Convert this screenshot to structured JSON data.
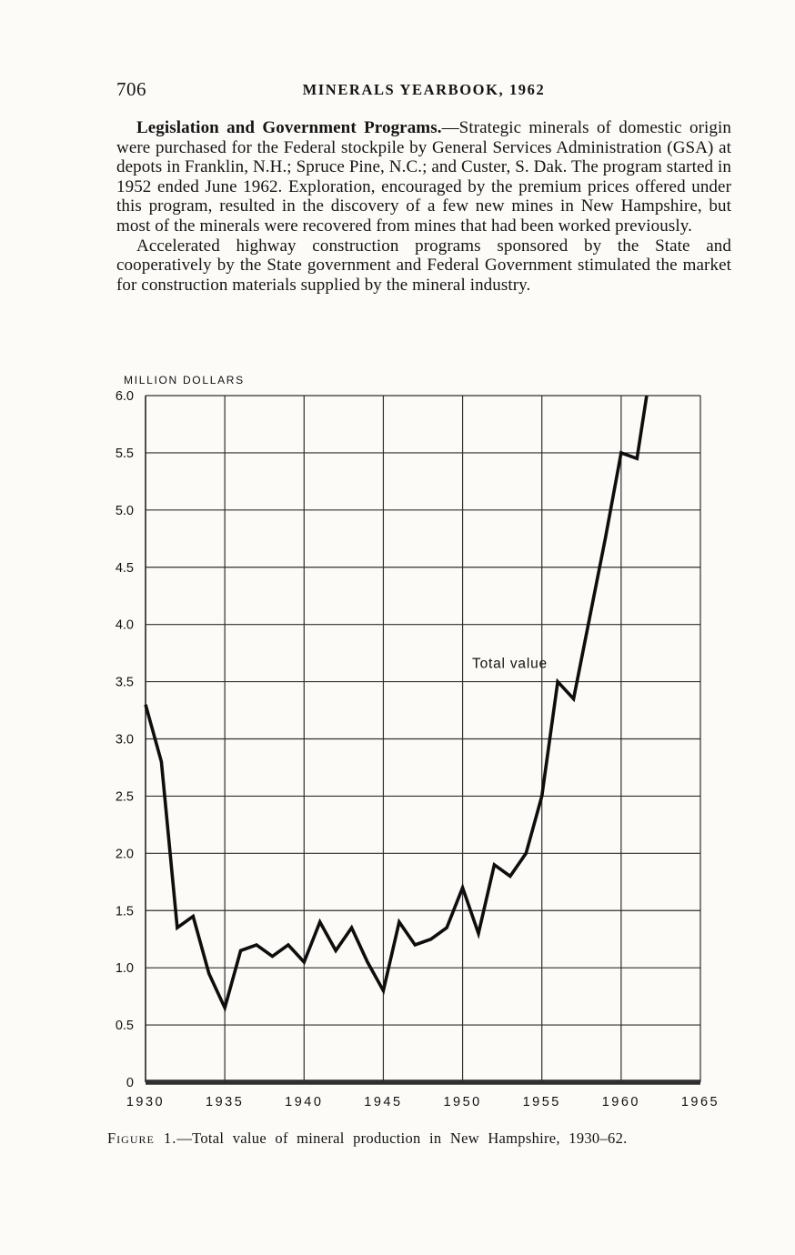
{
  "page": {
    "number": "706",
    "running_header": "MINERALS YEARBOOK, 1962"
  },
  "body": {
    "paragraph1_lead": "Legislation and Government Programs.",
    "paragraph1_text": "—Strategic minerals of domestic origin were purchased for the Federal stockpile by General Services Administration (GSA) at depots in Franklin, N.H.; Spruce Pine, N.C.; and Custer, S. Dak. The program started in 1952 ended June 1962. Exploration, encouraged by the premium prices offered under this program, resulted in the discovery of a few new mines in New Hampshire, but most of the minerals were recovered from mines that had been worked previously.",
    "paragraph2_text": "Accelerated highway construction programs sponsored by the State and cooperatively by the State government and Federal Government stimulated the market for construction materials supplied by the mineral industry."
  },
  "chart_data": {
    "type": "line",
    "title": "",
    "xlabel": "",
    "ylabel": "MILLION DOLLARS",
    "xlim": [
      1930,
      1965
    ],
    "ylim": [
      0,
      6.0
    ],
    "grid": true,
    "legend_position": "none",
    "x_ticks": [
      1930,
      1935,
      1940,
      1945,
      1950,
      1955,
      1960,
      1965
    ],
    "x_tick_labels": [
      "1930",
      "1935",
      "1940",
      "1945",
      "1950",
      "1955",
      "1960",
      "1965"
    ],
    "y_ticks": [
      6.0,
      5.5,
      5.0,
      4.5,
      4.0,
      3.5,
      3.0,
      2.5,
      2.0,
      1.5,
      1.0,
      0.5,
      0
    ],
    "y_tick_labels": [
      "6.0",
      "5.5",
      "5.0",
      "4.5",
      "4.0",
      "3.5",
      "3.0",
      "2.5",
      "2.0",
      "1.5",
      "1.0",
      "0.5",
      "0"
    ],
    "line_color": "#0e0e0e",
    "grid_color": "#2f2f2f",
    "series": [
      {
        "name": "Total value",
        "x": [
          1930,
          1931,
          1932,
          1933,
          1934,
          1935,
          1936,
          1937,
          1938,
          1939,
          1940,
          1941,
          1942,
          1943,
          1944,
          1945,
          1946,
          1947,
          1948,
          1949,
          1950,
          1951,
          1952,
          1953,
          1954,
          1955,
          1956,
          1957,
          1958,
          1959,
          1960,
          1961,
          1962
        ],
        "values": [
          3.3,
          2.8,
          1.35,
          1.45,
          0.95,
          0.65,
          1.15,
          1.2,
          1.1,
          1.2,
          1.05,
          1.4,
          1.15,
          1.35,
          1.05,
          0.8,
          1.4,
          1.2,
          1.25,
          1.35,
          1.7,
          1.3,
          1.9,
          1.8,
          2.0,
          2.5,
          3.5,
          3.35,
          4.05,
          4.75,
          5.5,
          5.45,
          6.35
        ]
      }
    ],
    "annotation": {
      "text": "Total value",
      "x": 1950.6,
      "y": 3.62
    }
  },
  "caption": {
    "label": "Figure 1.",
    "text": "—Total value of mineral production in New Hampshire, 1930–62."
  }
}
